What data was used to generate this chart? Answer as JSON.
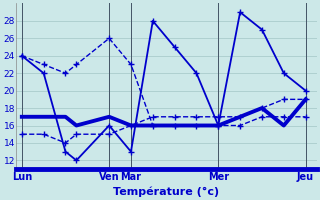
{
  "bg_color": "#cce8e8",
  "grid_color": "#aacccc",
  "line_color": "#0000cc",
  "axis_bar_color": "#0000cc",
  "xlabel": "Température (°c)",
  "x_tick_labels": [
    "Lun",
    "Ven",
    "Mar",
    "Mer",
    "Jeu"
  ],
  "x_tick_positions": [
    0,
    8,
    10,
    18,
    26
  ],
  "x_vline_positions": [
    0,
    8,
    10,
    18,
    26
  ],
  "ylim": [
    11,
    30
  ],
  "yticks": [
    12,
    14,
    16,
    18,
    20,
    22,
    24,
    26,
    28
  ],
  "xlim": [
    -0.5,
    27
  ],
  "series": [
    {
      "x": [
        0,
        2,
        4,
        5,
        8,
        10,
        12,
        14,
        16,
        18,
        20,
        22,
        24,
        26
      ],
      "y": [
        24,
        22,
        13,
        12,
        16,
        13,
        28,
        25,
        22,
        16,
        29,
        27,
        22,
        20
      ],
      "lw": 1.3,
      "ls": "-",
      "marker": true
    },
    {
      "x": [
        0,
        2,
        4,
        5,
        8,
        10,
        12,
        14,
        16,
        18,
        20,
        22,
        24,
        26
      ],
      "y": [
        17,
        17,
        17,
        16,
        17,
        16,
        16,
        16,
        16,
        16,
        17,
        18,
        16,
        19
      ],
      "lw": 2.8,
      "ls": "-",
      "marker": false
    },
    {
      "x": [
        0,
        2,
        4,
        5,
        8,
        10,
        12,
        14,
        16,
        18,
        20,
        22,
        24,
        26
      ],
      "y": [
        24,
        23,
        22,
        23,
        26,
        23,
        16,
        16,
        16,
        16,
        16,
        17,
        17,
        17
      ],
      "lw": 1.0,
      "ls": "--",
      "marker": true
    },
    {
      "x": [
        0,
        2,
        4,
        5,
        8,
        10,
        12,
        14,
        16,
        18,
        20,
        22,
        24,
        26
      ],
      "y": [
        15,
        15,
        14,
        15,
        15,
        16,
        17,
        17,
        17,
        17,
        17,
        18,
        19,
        19
      ],
      "lw": 1.0,
      "ls": "--",
      "marker": true
    }
  ]
}
